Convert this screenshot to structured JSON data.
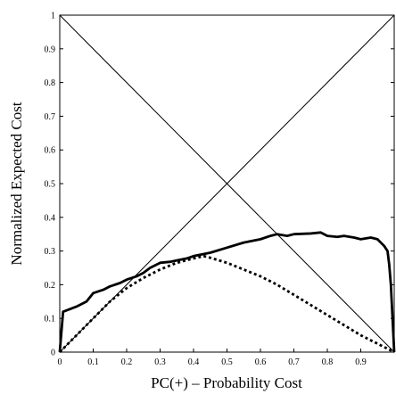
{
  "chart_data": {
    "type": "line",
    "title": "",
    "xlabel": "PC(+) – Probability Cost",
    "ylabel": "Normalized Expected Cost",
    "xlim": [
      0,
      1
    ],
    "ylim": [
      0,
      1
    ],
    "x_ticks": [
      "0",
      "0.1",
      "0.2",
      "0.3",
      "0.4",
      "0.5",
      "0.6",
      "0.7",
      "0.8",
      "0.9"
    ],
    "y_ticks": [
      "0",
      "0.1",
      "0.2",
      "0.3",
      "0.4",
      "0.5",
      "0.6",
      "0.7",
      "0.8",
      "0.9",
      "1"
    ],
    "grid": false,
    "legend": "none",
    "series": [
      {
        "style": "thin-solid",
        "x": [
          0,
          1
        ],
        "y": [
          0,
          1
        ]
      },
      {
        "style": "thin-solid",
        "x": [
          0,
          1
        ],
        "y": [
          1,
          0
        ]
      },
      {
        "style": "thick-solid",
        "x": [
          0,
          0.01,
          0.05,
          0.08,
          0.1,
          0.13,
          0.15,
          0.18,
          0.2,
          0.23,
          0.25,
          0.27,
          0.3,
          0.33,
          0.35,
          0.38,
          0.4,
          0.45,
          0.5,
          0.55,
          0.6,
          0.63,
          0.65,
          0.68,
          0.7,
          0.75,
          0.78,
          0.8,
          0.83,
          0.85,
          0.88,
          0.9,
          0.93,
          0.95,
          0.97,
          0.98,
          0.985,
          0.99,
          1.0
        ],
        "y": [
          0,
          0.12,
          0.135,
          0.15,
          0.175,
          0.185,
          0.195,
          0.205,
          0.215,
          0.225,
          0.235,
          0.25,
          0.265,
          0.268,
          0.272,
          0.278,
          0.285,
          0.295,
          0.31,
          0.325,
          0.335,
          0.345,
          0.35,
          0.345,
          0.35,
          0.352,
          0.355,
          0.345,
          0.342,
          0.345,
          0.34,
          0.335,
          0.34,
          0.335,
          0.315,
          0.3,
          0.26,
          0.2,
          0.0
        ]
      },
      {
        "style": "thick-dotted",
        "x": [
          0,
          0.05,
          0.1,
          0.15,
          0.2,
          0.25,
          0.3,
          0.35,
          0.4,
          0.43,
          0.45,
          0.5,
          0.55,
          0.6,
          0.65,
          0.7,
          0.75,
          0.8,
          0.85,
          0.9,
          0.95,
          1.0
        ],
        "y": [
          0,
          0.05,
          0.1,
          0.15,
          0.19,
          0.22,
          0.245,
          0.265,
          0.278,
          0.285,
          0.28,
          0.265,
          0.245,
          0.225,
          0.2,
          0.17,
          0.14,
          0.11,
          0.08,
          0.05,
          0.025,
          0.0
        ]
      }
    ]
  }
}
